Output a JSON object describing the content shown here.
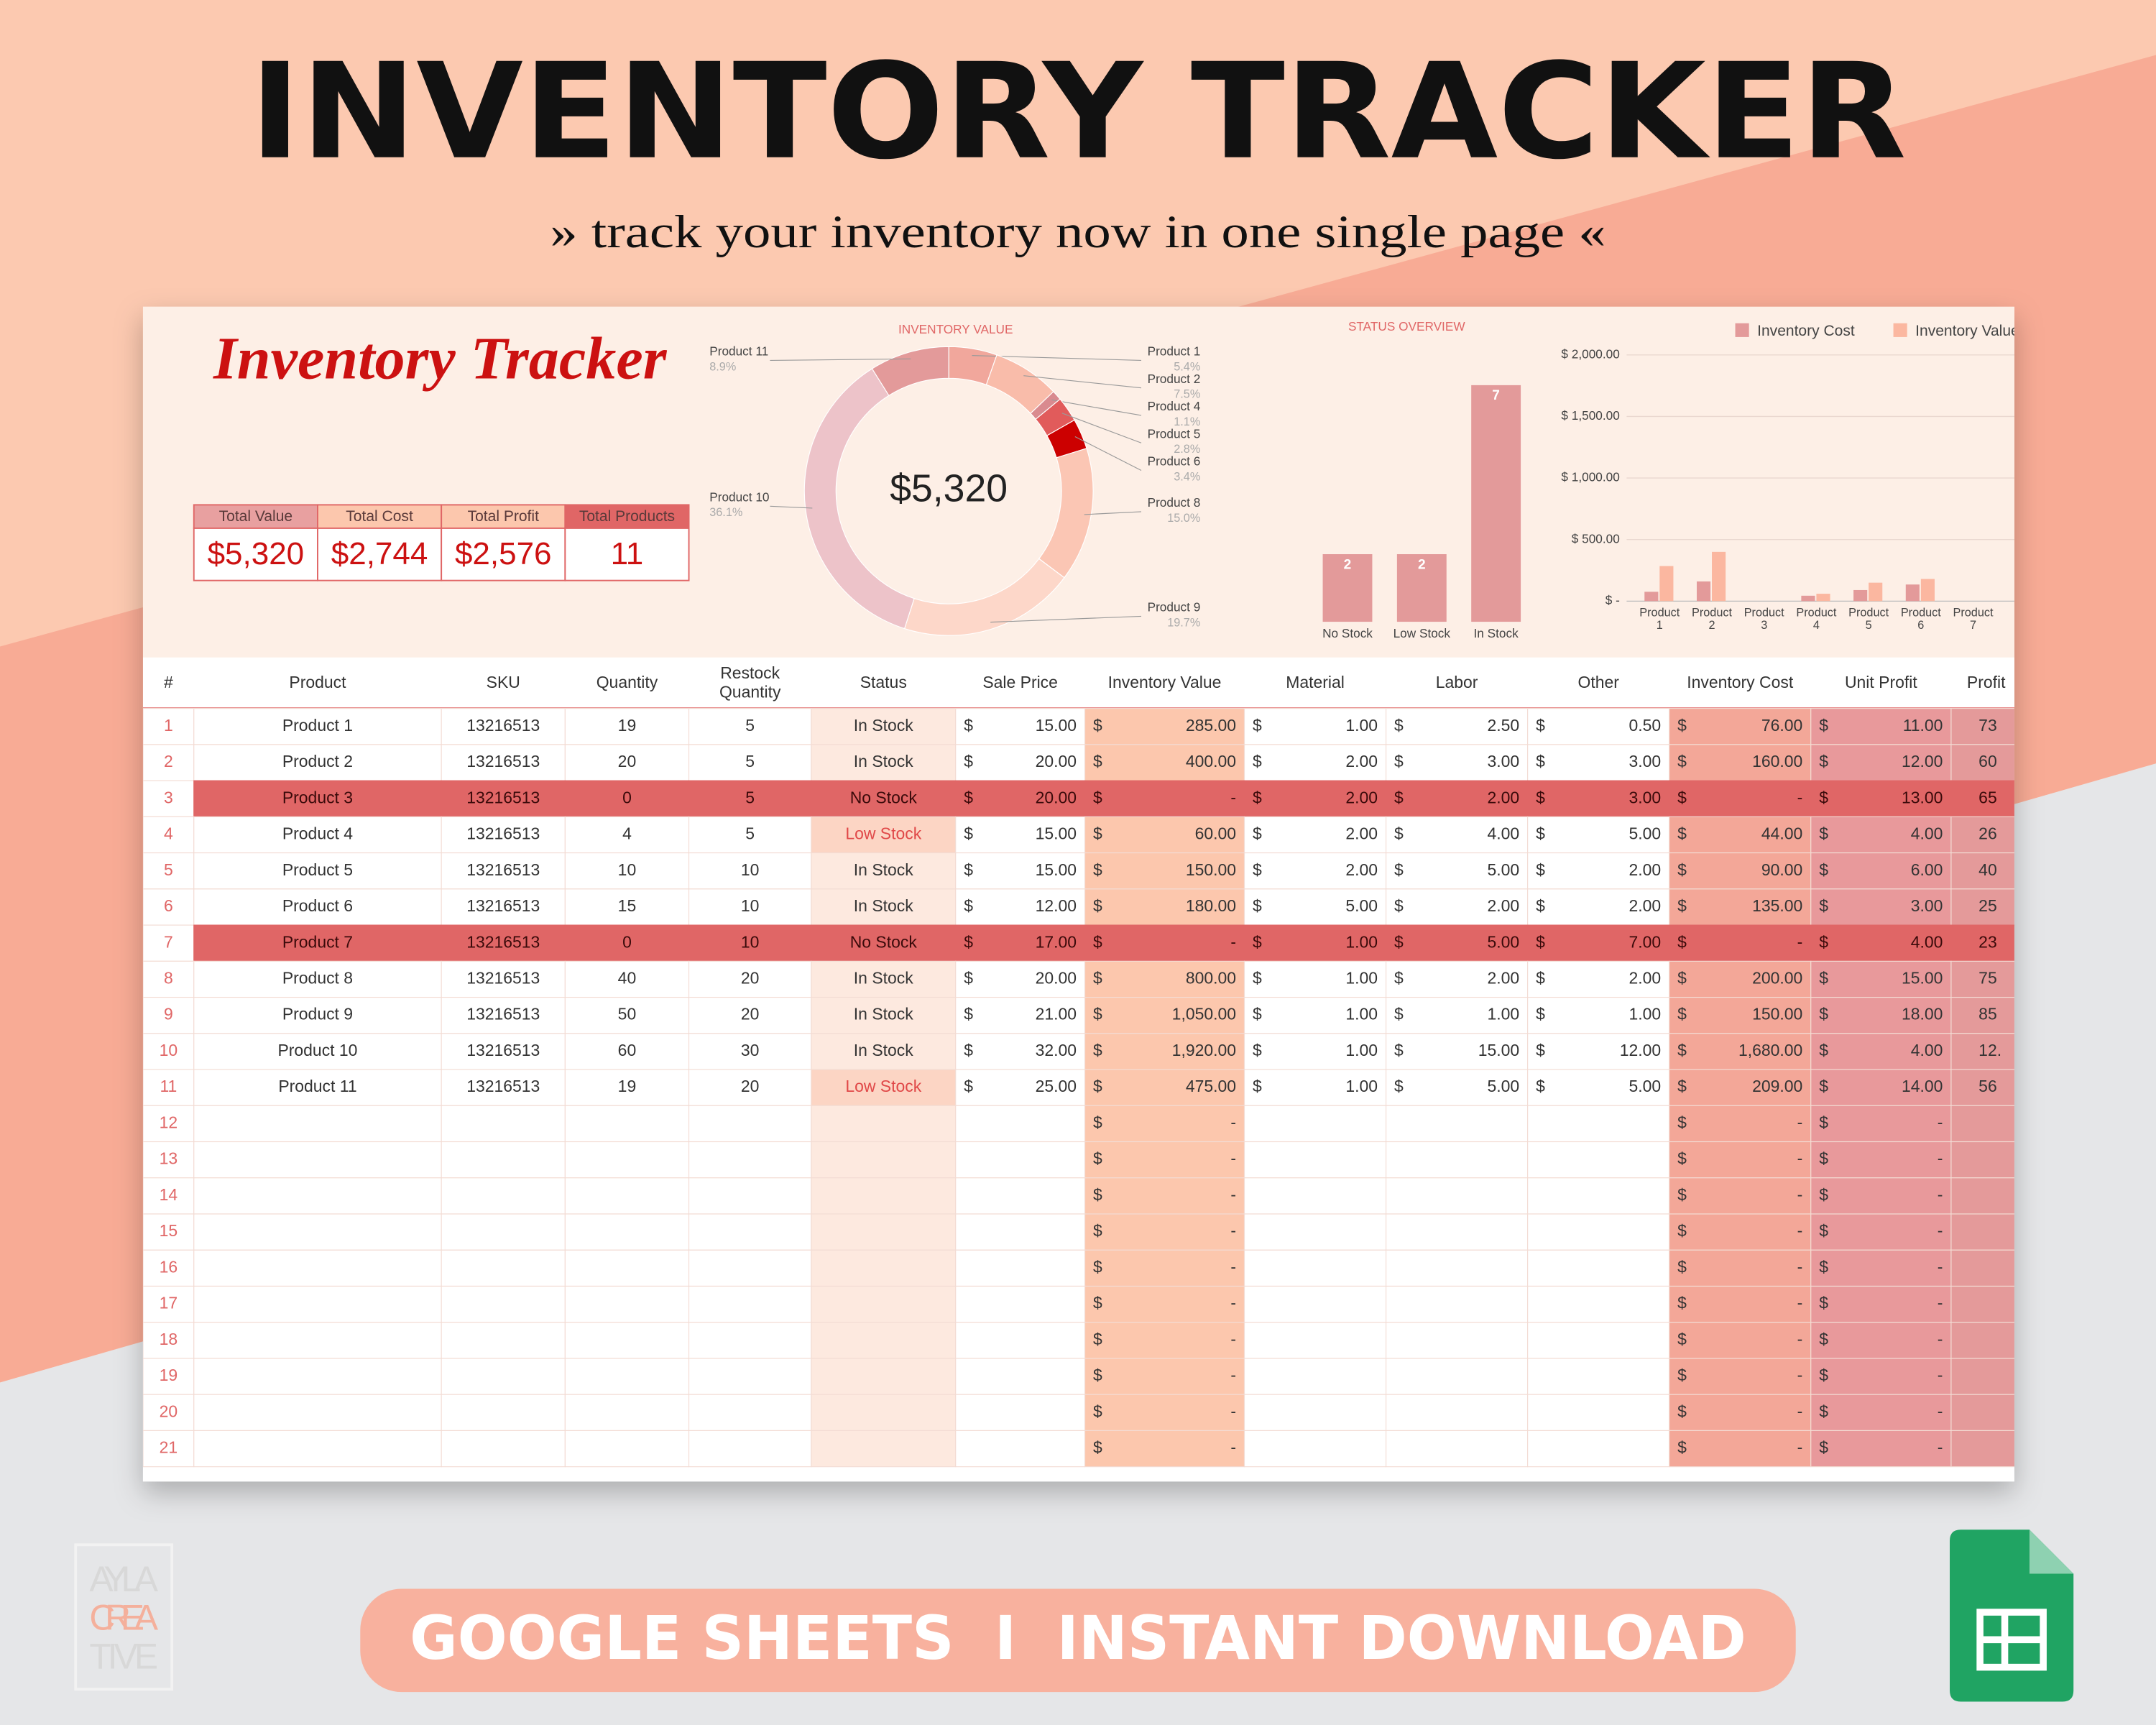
{
  "header": {
    "title": "INVENTORY TRACKER",
    "subtitle": "» track your inventory now in one single page «"
  },
  "sheet": {
    "title": "Inventory Tracker",
    "summary": {
      "labels": [
        "Total Value",
        "Total Cost",
        "Total Profit",
        "Total Products"
      ],
      "values": [
        "$5,320",
        "$2,744",
        "$2,576",
        "11"
      ]
    }
  },
  "chart_data": [
    {
      "type": "pie",
      "title": "INVENTORY VALUE",
      "center_label": "$5,320",
      "categories": [
        "Product 1",
        "Product 2",
        "Product 4",
        "Product 5",
        "Product 6",
        "Product 8",
        "Product 9",
        "Product 10",
        "Product 11"
      ],
      "values": [
        5.4,
        7.5,
        1.1,
        2.8,
        3.4,
        15.0,
        19.7,
        36.1,
        8.9
      ],
      "value_labels": [
        "5.4%",
        "7.5%",
        "1.1%",
        "2.8%",
        "3.4%",
        "15.0%",
        "19.7%",
        "36.1%",
        "8.9%"
      ],
      "colors": [
        "#f1a79c",
        "#f9bcaa",
        "#d98a8f",
        "#e15b5b",
        "#cc0000",
        "#fbc6b4",
        "#fdd7c9",
        "#edc3c9",
        "#e39a9a"
      ]
    },
    {
      "type": "bar",
      "title": "STATUS OVERVIEW",
      "categories": [
        "No Stock",
        "Low Stock",
        "In Stock"
      ],
      "values": [
        2,
        2,
        7
      ],
      "color": "#e39a9a"
    },
    {
      "type": "grouped_bar",
      "categories": [
        "Product 1",
        "Product 2",
        "Product 3",
        "Product 4",
        "Product 5",
        "Product 6",
        "Product 7"
      ],
      "series": [
        {
          "name": "Inventory Cost",
          "color": "#e39a9a",
          "values": [
            76,
            160,
            0,
            44,
            90,
            135,
            0
          ]
        },
        {
          "name": "Inventory Value",
          "color": "#fbb7a0",
          "values": [
            285,
            400,
            0,
            60,
            150,
            180,
            0
          ]
        }
      ],
      "ylim": [
        0,
        2000
      ],
      "yticks": [
        {
          "value": 0,
          "label": "$ -"
        },
        {
          "value": 500,
          "label": "$ 500.00"
        },
        {
          "value": 1000,
          "label": "$ 1,000.00"
        },
        {
          "value": 1500,
          "label": "$ 1,500.00"
        },
        {
          "value": 2000,
          "label": "$ 2,000.00"
        }
      ],
      "grid": true,
      "legend": "top"
    }
  ],
  "table": {
    "currency_symbol": "$",
    "columns": [
      "#",
      "Product",
      "SKU",
      "Quantity",
      "Restock Quantity",
      "Status",
      "Sale Price",
      "Inventory Value",
      "Material",
      "Labor",
      "Other",
      "Inventory Cost",
      "Unit Profit",
      "Profit"
    ],
    "rows": [
      [
        "1",
        "Product 1",
        "13216513",
        "19",
        "5",
        "In Stock",
        "15.00",
        "285.00",
        "1.00",
        "2.50",
        "0.50",
        "76.00",
        "11.00",
        "73"
      ],
      [
        "2",
        "Product 2",
        "13216513",
        "20",
        "5",
        "In Stock",
        "20.00",
        "400.00",
        "2.00",
        "3.00",
        "3.00",
        "160.00",
        "12.00",
        "60"
      ],
      [
        "3",
        "Product 3",
        "13216513",
        "0",
        "5",
        "No Stock",
        "20.00",
        "-",
        "2.00",
        "2.00",
        "3.00",
        "-",
        "13.00",
        "65"
      ],
      [
        "4",
        "Product 4",
        "13216513",
        "4",
        "5",
        "Low Stock",
        "15.00",
        "60.00",
        "2.00",
        "4.00",
        "5.00",
        "44.00",
        "4.00",
        "26"
      ],
      [
        "5",
        "Product 5",
        "13216513",
        "10",
        "10",
        "In Stock",
        "15.00",
        "150.00",
        "2.00",
        "5.00",
        "2.00",
        "90.00",
        "6.00",
        "40"
      ],
      [
        "6",
        "Product 6",
        "13216513",
        "15",
        "10",
        "In Stock",
        "12.00",
        "180.00",
        "5.00",
        "2.00",
        "2.00",
        "135.00",
        "3.00",
        "25"
      ],
      [
        "7",
        "Product 7",
        "13216513",
        "0",
        "10",
        "No Stock",
        "17.00",
        "-",
        "1.00",
        "5.00",
        "7.00",
        "-",
        "4.00",
        "23"
      ],
      [
        "8",
        "Product 8",
        "13216513",
        "40",
        "20",
        "In Stock",
        "20.00",
        "800.00",
        "1.00",
        "2.00",
        "2.00",
        "200.00",
        "15.00",
        "75"
      ],
      [
        "9",
        "Product 9",
        "13216513",
        "50",
        "20",
        "In Stock",
        "21.00",
        "1,050.00",
        "1.00",
        "1.00",
        "1.00",
        "150.00",
        "18.00",
        "85"
      ],
      [
        "10",
        "Product 10",
        "13216513",
        "60",
        "30",
        "In Stock",
        "32.00",
        "1,920.00",
        "1.00",
        "15.00",
        "12.00",
        "1,680.00",
        "4.00",
        "12."
      ],
      [
        "11",
        "Product 11",
        "13216513",
        "19",
        "20",
        "Low Stock",
        "25.00",
        "475.00",
        "1.00",
        "5.00",
        "5.00",
        "209.00",
        "14.00",
        "56"
      ],
      [
        "12",
        null,
        null,
        null,
        null,
        null,
        null,
        "-",
        null,
        null,
        null,
        "-",
        "-",
        null
      ],
      [
        "13",
        null,
        null,
        null,
        null,
        null,
        null,
        "-",
        null,
        null,
        null,
        "-",
        "-",
        null
      ],
      [
        "14",
        null,
        null,
        null,
        null,
        null,
        null,
        "-",
        null,
        null,
        null,
        "-",
        "-",
        null
      ],
      [
        "15",
        null,
        null,
        null,
        null,
        null,
        null,
        "-",
        null,
        null,
        null,
        "-",
        "-",
        null
      ],
      [
        "16",
        null,
        null,
        null,
        null,
        null,
        null,
        "-",
        null,
        null,
        null,
        "-",
        "-",
        null
      ],
      [
        "17",
        null,
        null,
        null,
        null,
        null,
        null,
        "-",
        null,
        null,
        null,
        "-",
        "-",
        null
      ],
      [
        "18",
        null,
        null,
        null,
        null,
        null,
        null,
        "-",
        null,
        null,
        null,
        "-",
        "-",
        null
      ],
      [
        "19",
        null,
        null,
        null,
        null,
        null,
        null,
        "-",
        null,
        null,
        null,
        "-",
        "-",
        null
      ],
      [
        "20",
        null,
        null,
        null,
        null,
        null,
        null,
        "-",
        null,
        null,
        null,
        "-",
        "-",
        null
      ],
      [
        "21",
        null,
        null,
        null,
        null,
        null,
        null,
        "-",
        null,
        null,
        null,
        "-",
        "-",
        null
      ]
    ]
  },
  "footer": {
    "button": "GOOGLE SHEETS  I  INSTANT DOWNLOAD",
    "logo": [
      "AYLA",
      "CREA",
      "TIVE"
    ]
  }
}
